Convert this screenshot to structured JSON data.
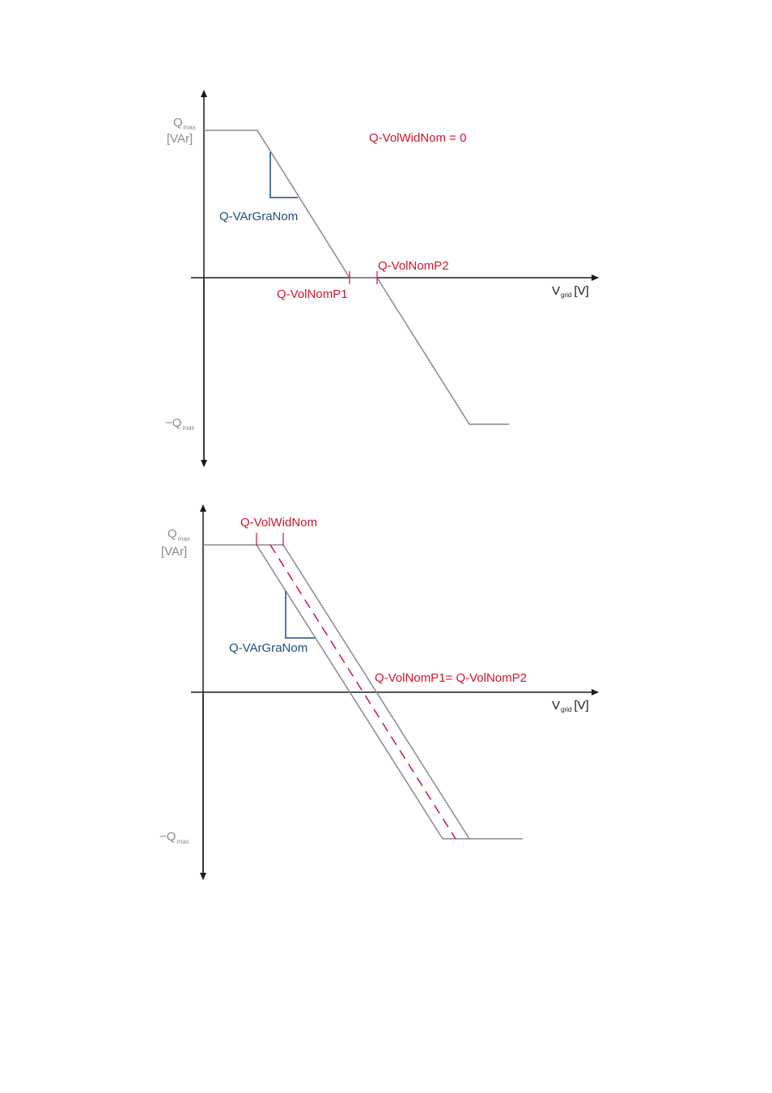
{
  "colors": {
    "axis": "#1a1a1a",
    "curve": "#8a8a8a",
    "red": "#d0142c",
    "blue": "#1d4e7e"
  },
  "diagram1": {
    "y_top_label_main": "Q",
    "y_top_label_sub": "max",
    "y_top_unit": "[VAr]",
    "y_bottom_label_main": "−Q",
    "y_bottom_label_sub": "max",
    "x_label_main": "V",
    "x_label_sub": "grid",
    "x_label_unit": "[V]",
    "width_label": "Q-VolWidNom = 0",
    "gradient_label": "Q-VArGraNom",
    "p1_label": "Q-VolNomP1",
    "p2_label": "Q-VolNomP2"
  },
  "diagram2": {
    "y_top_label_main": "Q",
    "y_top_label_sub": "max",
    "y_top_unit": "[VAr]",
    "y_bottom_label_main": "−Q",
    "y_bottom_label_sub": "max",
    "x_label_main": "V",
    "x_label_sub": "grid",
    "x_label_unit": "[V]",
    "width_label": "Q-VolWidNom",
    "gradient_label": "Q-VArGraNom",
    "p_label": "Q-VolNomP1= Q-VolNomP2"
  }
}
